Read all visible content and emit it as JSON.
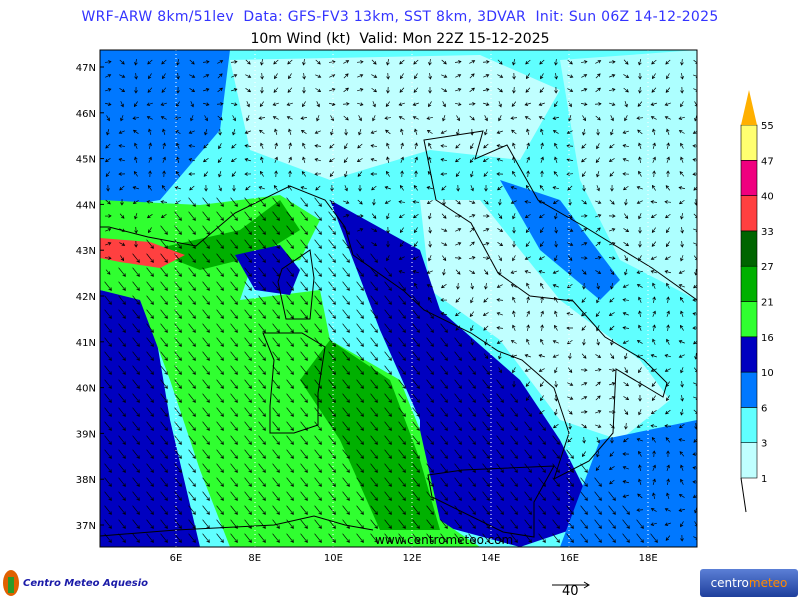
{
  "header": {
    "title": "WRF-ARW 8km/51lev  Data: GFS-FV3 13km, SST 8km, 3DVAR  Init: Sun 06Z 14-12-2025",
    "subtitle": "10m Wind (kt)  Valid: Mon 22Z 15-12-2025"
  },
  "map": {
    "lat_labels": [
      "47N",
      "46N",
      "45N",
      "44N",
      "43N",
      "42N",
      "41N",
      "40N",
      "39N",
      "38N",
      "37N"
    ],
    "lon_labels": [
      "6E",
      "8E",
      "10E",
      "12E",
      "14E",
      "16E",
      "18E"
    ],
    "watermark": "www.centrometeo.com"
  },
  "colorbar": {
    "levels": [
      "1",
      "3",
      "6",
      "10",
      "16",
      "21",
      "27",
      "33",
      "40",
      "47",
      "55"
    ],
    "colors": [
      "#c0ffff",
      "#60ffff",
      "#0078ff",
      "#0000c0",
      "#30ff30",
      "#00b000",
      "#006400",
      "#ff4040",
      "#f0007f",
      "#ffff70"
    ],
    "extend_color": "#ffb000"
  },
  "reference_vector": {
    "label": "40"
  },
  "logos": {
    "left": "Centro Meteo Aquesio",
    "right_a": "centro",
    "right_b": "meteo"
  }
}
